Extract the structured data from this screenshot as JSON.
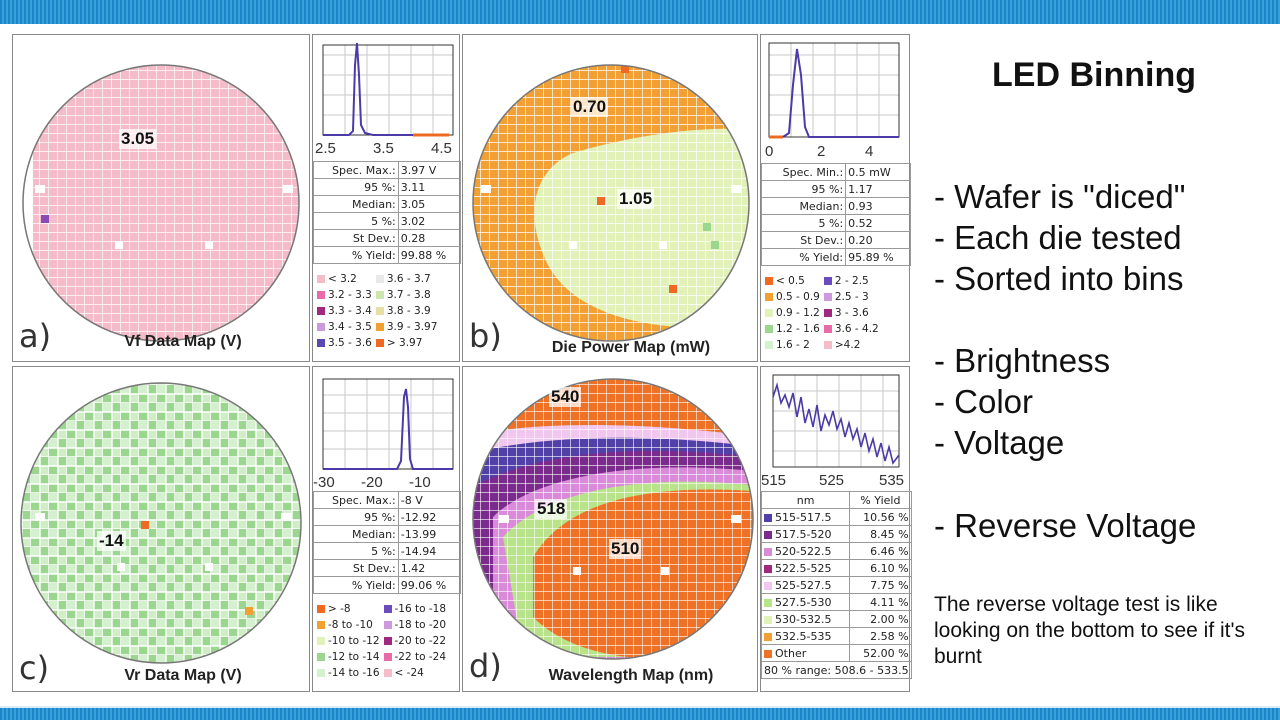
{
  "colors": {
    "vf": "#f4bcc8",
    "power_low": "#f2a033",
    "power_high": "#e2f1b8",
    "vr_a": "#9bd68f",
    "vr_b": "#d5f0cf",
    "wl_orange": "#ee7126",
    "wl_pink": "#d98ad8",
    "wl_purple": "#7a2b8c",
    "wl_indigo": "#5140a8",
    "wl_green": "#b9e38a",
    "wl_lightpink": "#f2c7ef",
    "plot_line": "#4b3aa8"
  },
  "slide": {
    "title": "LED Binning",
    "bullets": [
      "- Wafer is \"diced\"",
      "- Each die tested",
      "- Sorted into bins",
      "- Brightness",
      "- Color",
      "- Voltage",
      "- Reverse Voltage"
    ],
    "note": "The reverse voltage test is like looking on the bottom to see if it's burnt"
  },
  "panels": [
    {
      "letter": "a)",
      "map_title": "Vf Data Map (V)",
      "center_label": "3.05",
      "hist_ticks": [
        "2.5",
        "3.5",
        "4.5"
      ],
      "stats": [
        [
          "Spec. Max.:",
          "3.97 V"
        ],
        [
          "95 %:",
          "3.11"
        ],
        [
          "Median:",
          "3.05"
        ],
        [
          "5 %:",
          "3.02"
        ],
        [
          "St Dev.:",
          "0.28"
        ],
        [
          "% Yield:",
          "99.88 %"
        ]
      ],
      "legend": [
        [
          "< 3.2",
          "#f4bcc8"
        ],
        [
          "3.6 - 3.7",
          "#e9e9e9"
        ],
        [
          "3.2 - 3.3",
          "#e86aa6"
        ],
        [
          "3.7 - 3.8",
          "#cde6b0"
        ],
        [
          "3.3 - 3.4",
          "#a0287e"
        ],
        [
          "3.8 - 3.9",
          "#e6e0a6"
        ],
        [
          "3.4 - 3.5",
          "#cc99dd"
        ],
        [
          "3.9 - 3.97",
          "#f2a033"
        ],
        [
          "3.5 - 3.6",
          "#5b48b0"
        ],
        [
          "> 3.97",
          "#ee6a22"
        ]
      ]
    },
    {
      "letter": "b)",
      "map_title": "Die Power Map (mW)",
      "label_a": "0.70",
      "label_b": "1.05",
      "hist_ticks": [
        "0",
        "2",
        "4"
      ],
      "stats": [
        [
          "Spec. Min.:",
          "0.5 mW"
        ],
        [
          "95 %:",
          "1.17"
        ],
        [
          "Median:",
          "0.93"
        ],
        [
          "5 %:",
          "0.52"
        ],
        [
          "St Dev.:",
          "0.20"
        ],
        [
          "% Yield:",
          "95.89 %"
        ]
      ],
      "legend": [
        [
          "< 0.5",
          "#ee6a22"
        ],
        [
          "2 - 2.5",
          "#6b4bc0"
        ],
        [
          "0.5 - 0.9",
          "#f2a033"
        ],
        [
          "2.5 - 3",
          "#cc99dd"
        ],
        [
          "0.9 - 1.2",
          "#e2f1b8"
        ],
        [
          "3 - 3.6",
          "#a0287e"
        ],
        [
          "1.2 - 1.6",
          "#9bd68f"
        ],
        [
          "3.6 - 4.2",
          "#e86aa6"
        ],
        [
          "1.6 - 2",
          "#d5f0cf"
        ],
        [
          ">4.2",
          "#f4bcc8"
        ]
      ]
    },
    {
      "letter": "c)",
      "map_title": "Vr Data Map (V)",
      "center_label": "-14",
      "hist_ticks": [
        "-30",
        "-20",
        "-10"
      ],
      "stats": [
        [
          "Spec. Max.:",
          "-8 V"
        ],
        [
          "95 %:",
          "-12.92"
        ],
        [
          "Median:",
          "-13.99"
        ],
        [
          "5 %:",
          "-14.94"
        ],
        [
          "St Dev.:",
          "1.42"
        ],
        [
          "% Yield:",
          "99.06 %"
        ]
      ],
      "legend": [
        [
          "> -8",
          "#ee6a22"
        ],
        [
          "-16 to -18",
          "#6b4bc0"
        ],
        [
          "-8 to -10",
          "#f2a033"
        ],
        [
          "-18 to -20",
          "#cc99dd"
        ],
        [
          "-10 to -12",
          "#e2f1b8"
        ],
        [
          "-20 to -22",
          "#a0287e"
        ],
        [
          "-12 to -14",
          "#9bd68f"
        ],
        [
          "-22 to -24",
          "#e86aa6"
        ],
        [
          "-14 to -16",
          "#d5f0cf"
        ],
        [
          "< -24",
          "#f4bcc8"
        ]
      ]
    },
    {
      "letter": "d)",
      "map_title": "Wavelength Map (nm)",
      "label_540": "540",
      "label_518": "518",
      "label_510": "510",
      "hist_ticks": [
        "515",
        "525",
        "535"
      ],
      "table_header": [
        "nm",
        "% Yield"
      ],
      "rows": [
        [
          "515-517.5",
          "10.56 %",
          "#5140a8"
        ],
        [
          "517.5-520",
          "8.45 %",
          "#7a2b8c"
        ],
        [
          "520-522.5",
          "6.46 %",
          "#d98ad8"
        ],
        [
          "522.5-525",
          "6.10 %",
          "#a0287e"
        ],
        [
          "525-527.5",
          "7.75 %",
          "#f2c7ef"
        ],
        [
          "527.5-530",
          "4.11 %",
          "#b9e38a"
        ],
        [
          "530-532.5",
          "2.00 %",
          "#e2f1b8"
        ],
        [
          "532.5-535",
          "2.58 %",
          "#f2a033"
        ],
        [
          "Other",
          "52.00 %",
          "#ee7126"
        ]
      ],
      "range": "80 % range: 508.6 - 533.5"
    }
  ]
}
